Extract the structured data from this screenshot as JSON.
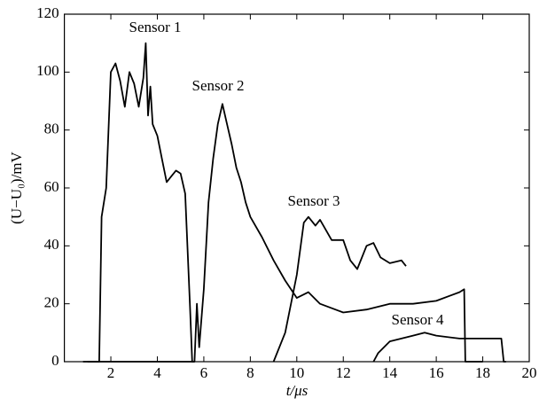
{
  "chart_data": {
    "type": "line",
    "x_label": "t/μs",
    "y_label": "(U−U₀)/mV",
    "xlim": [
      0,
      20
    ],
    "xticks": [
      2,
      4,
      6,
      8,
      10,
      12,
      14,
      16,
      18,
      20
    ],
    "ylim": [
      0,
      120
    ],
    "yticks": [
      0,
      20,
      40,
      60,
      80,
      100,
      120
    ],
    "series": [
      {
        "name": "Sensor 1",
        "color": "#000000",
        "x": [
          0.8,
          1.4,
          1.5,
          1.6,
          1.8,
          2.0,
          2.2,
          2.4,
          2.6,
          2.8,
          3.0,
          3.2,
          3.4,
          3.5,
          3.6,
          3.7,
          3.8,
          4.0,
          4.2,
          4.4,
          4.6,
          4.8,
          5.0,
          5.2,
          5.4,
          5.5,
          5.6
        ],
        "values": [
          0,
          0,
          0,
          50,
          60,
          100,
          103,
          97,
          88,
          100,
          96,
          88,
          98,
          110,
          85,
          95,
          82,
          78,
          70,
          62,
          64,
          66,
          65,
          58,
          20,
          0,
          0
        ]
      },
      {
        "name": "Sensor 2",
        "color": "#000000",
        "x": [
          1.0,
          5.6,
          5.7,
          5.8,
          6.0,
          6.2,
          6.4,
          6.6,
          6.8,
          7.0,
          7.2,
          7.4,
          7.6,
          7.8,
          8.0,
          8.5,
          9.0,
          9.5,
          10.0,
          10.5,
          11.0,
          12.0,
          13.0,
          14.0,
          15.0,
          16.0,
          17.0,
          17.2,
          17.25,
          18.0
        ],
        "values": [
          0,
          0,
          20,
          5,
          25,
          55,
          70,
          82,
          89,
          82,
          75,
          67,
          62,
          55,
          50,
          43,
          35,
          28,
          22,
          24,
          20,
          17,
          18,
          20,
          20,
          21,
          24,
          25,
          0,
          0
        ]
      },
      {
        "name": "Sensor 3",
        "color": "#000000",
        "x": [
          9.0,
          9.5,
          10.0,
          10.3,
          10.5,
          10.8,
          11.0,
          11.5,
          12.0,
          12.3,
          12.6,
          13.0,
          13.3,
          13.6,
          14.0,
          14.5,
          14.7
        ],
        "values": [
          0,
          10,
          30,
          48,
          50,
          47,
          49,
          42,
          42,
          35,
          32,
          40,
          41,
          36,
          34,
          35,
          33
        ]
      },
      {
        "name": "Sensor 4",
        "color": "#000000",
        "x": [
          13.3,
          13.5,
          14.0,
          14.5,
          15.0,
          15.5,
          16.0,
          17.0,
          18.0,
          18.8,
          18.9,
          19.0
        ],
        "values": [
          0,
          3,
          7,
          8,
          9,
          10,
          9,
          8,
          8,
          8,
          0,
          0
        ]
      }
    ]
  }
}
